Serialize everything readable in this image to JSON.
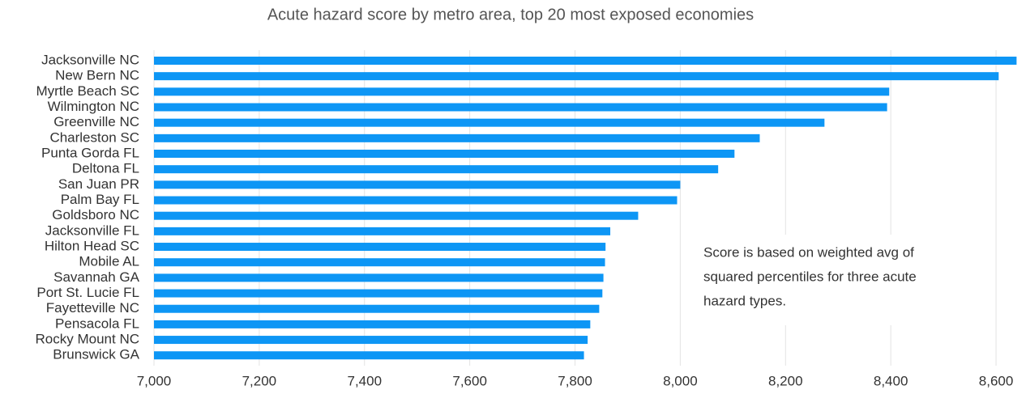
{
  "chart_data": {
    "type": "bar",
    "orientation": "horizontal",
    "title": "Acute hazard score by metro area, top 20 most exposed economies",
    "categories": [
      "Jacksonville NC",
      "New Bern NC",
      "Myrtle Beach SC",
      "Wilmington NC",
      "Greenville NC",
      "Charleston SC",
      "Punta Gorda FL",
      "Deltona FL",
      "San Juan PR",
      "Palm Bay FL",
      "Goldsboro NC",
      "Jacksonville FL",
      "Hilton Head SC",
      "Mobile AL",
      "Savannah GA",
      "Port St. Lucie FL",
      "Fayetteville NC",
      "Pensacola FL",
      "Rocky Mount NC",
      "Brunswick GA"
    ],
    "values": [
      8639,
      8605,
      8397,
      8393,
      8274,
      8151,
      8103,
      8072,
      8000,
      7994,
      7920,
      7867,
      7858,
      7857,
      7854,
      7852,
      7846,
      7829,
      7824,
      7817
    ],
    "color": "#0d96f5",
    "xlim": [
      7000,
      8650
    ],
    "xticks": [
      {
        "value": 7000,
        "label": "7,000"
      },
      {
        "value": 7200,
        "label": "7,200"
      },
      {
        "value": 7400,
        "label": "7,400"
      },
      {
        "value": 7600,
        "label": "7,600"
      },
      {
        "value": 7800,
        "label": "7,800"
      },
      {
        "value": 8000,
        "label": "8,000"
      },
      {
        "value": 8200,
        "label": "8,200"
      },
      {
        "value": 8400,
        "label": "8,400"
      },
      {
        "value": 8600,
        "label": "8,600"
      }
    ],
    "grid": true,
    "annotation": [
      "Score is based on weighted avg of",
      "squared percentiles for three acute",
      "hazard types."
    ]
  }
}
